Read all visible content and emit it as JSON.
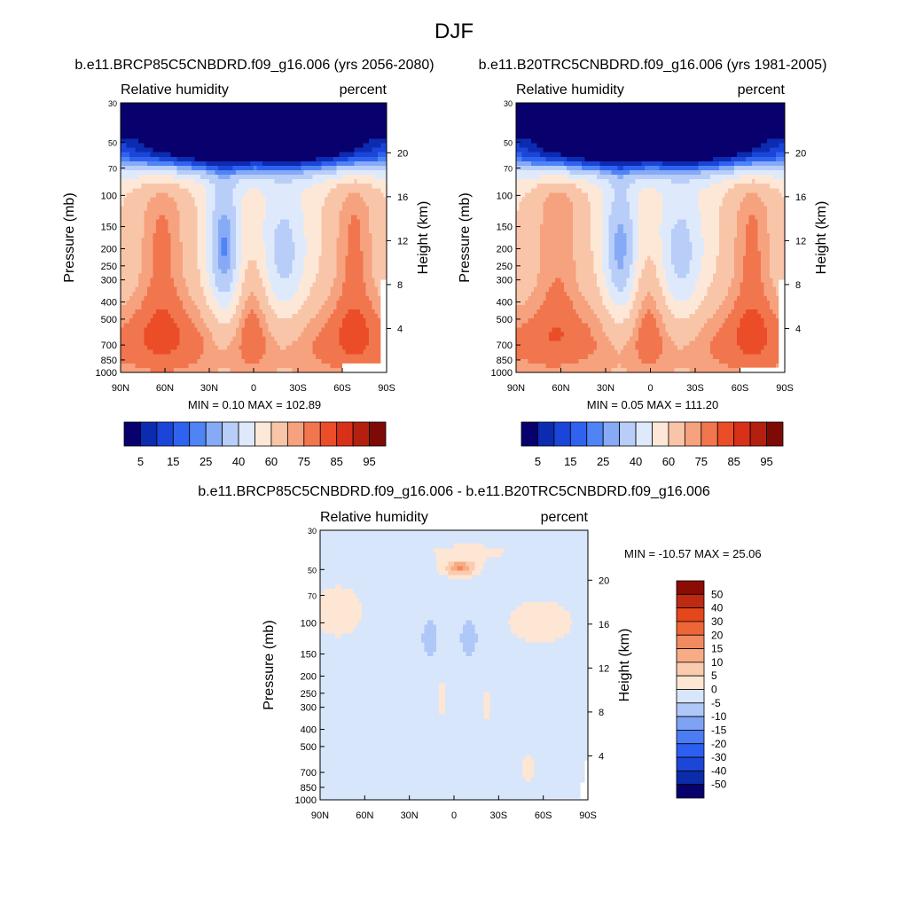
{
  "figure": {
    "title": "DJF"
  },
  "colors": {
    "abs_palette": [
      "#08006c",
      "#0c2bb0",
      "#1a45d8",
      "#2f62ef",
      "#4f84f5",
      "#86aaf5",
      "#b8cdf8",
      "#deeafc",
      "#fde8d8",
      "#f9c5a9",
      "#f6a27e",
      "#f1764e",
      "#eb4d28",
      "#d9301a",
      "#b3200f",
      "#7d0a05"
    ],
    "diff_palette": [
      "#08006c",
      "#0b2ba8",
      "#1c46d6",
      "#2c5fef",
      "#4b7cf3",
      "#7ea3f4",
      "#afc8f8",
      "#d7e6fb",
      "#fde6d3",
      "#fbcbae",
      "#f7ac86",
      "#f28a5f",
      "#ee6637",
      "#e4471c",
      "#bd2a12",
      "#8b0c05"
    ]
  },
  "chart_data": [
    {
      "type": "heatmap",
      "name": "panel-future",
      "title": "b.e11.BRCP85C5CNBDRD.f09_g16.006 (yrs 2056-2080)",
      "left_label": "Relative humidity",
      "right_label": "percent",
      "ylabel": "Pressure (mb)",
      "y2label": "Height (km)",
      "x_ticks": [
        "90N",
        "60N",
        "30N",
        "0",
        "30S",
        "60S",
        "90S"
      ],
      "x_values": [
        90,
        60,
        30,
        0,
        -30,
        -60,
        -90
      ],
      "y_ticks": [
        30,
        50,
        70,
        100,
        150,
        200,
        250,
        300,
        400,
        500,
        700,
        850,
        1000
      ],
      "y_ticks_right": [
        20,
        16,
        12,
        8,
        4
      ],
      "ylim": [
        1000,
        30
      ],
      "scale": "log",
      "stats": "MIN =   0.10  MAX = 102.89",
      "colorbar_labels": [
        "5",
        "15",
        "25",
        "40",
        "60",
        "75",
        "85",
        "95"
      ],
      "levels": [
        5,
        10,
        15,
        20,
        25,
        30,
        40,
        50,
        60,
        70,
        75,
        80,
        85,
        90,
        95
      ]
    },
    {
      "type": "heatmap",
      "name": "panel-present",
      "title": "b.e11.B20TRC5CNBDRD.f09_g16.006 (yrs 1981-2005)",
      "left_label": "Relative humidity",
      "right_label": "percent",
      "ylabel": "Pressure (mb)",
      "y2label": "Height (km)",
      "x_ticks": [
        "90N",
        "60N",
        "30N",
        "0",
        "30S",
        "60S",
        "90S"
      ],
      "x_values": [
        90,
        60,
        30,
        0,
        -30,
        -60,
        -90
      ],
      "y_ticks": [
        30,
        50,
        70,
        100,
        150,
        200,
        250,
        300,
        400,
        500,
        700,
        850,
        1000
      ],
      "y_ticks_right": [
        20,
        16,
        12,
        8,
        4
      ],
      "ylim": [
        1000,
        30
      ],
      "scale": "log",
      "stats": "MIN =   0.05  MAX = 111.20",
      "colorbar_labels": [
        "5",
        "15",
        "25",
        "40",
        "60",
        "75",
        "85",
        "95"
      ],
      "levels": [
        5,
        10,
        15,
        20,
        25,
        30,
        40,
        50,
        60,
        70,
        75,
        80,
        85,
        90,
        95
      ]
    },
    {
      "type": "heatmap",
      "name": "panel-difference",
      "title": "b.e11.BRCP85C5CNBDRD.f09_g16.006 - b.e11.B20TRC5CNBDRD.f09_g16.006",
      "left_label": "Relative humidity",
      "right_label": "percent",
      "ylabel": "Pressure (mb)",
      "y2label": "Height (km)",
      "x_ticks": [
        "90N",
        "60N",
        "30N",
        "0",
        "30S",
        "60S",
        "90S"
      ],
      "x_values": [
        90,
        60,
        30,
        0,
        -30,
        -60,
        -90
      ],
      "y_ticks": [
        30,
        50,
        70,
        100,
        150,
        200,
        250,
        300,
        400,
        500,
        700,
        850,
        1000
      ],
      "y_ticks_right": [
        20,
        16,
        12,
        8,
        4
      ],
      "ylim": [
        1000,
        30
      ],
      "scale": "log",
      "stats": "MIN = -10.57  MAX =  25.06",
      "colorbar_labels": [
        "50",
        "40",
        "30",
        "20",
        "15",
        "10",
        "5",
        "0",
        "-5",
        "-10",
        "-15",
        "-20",
        "-30",
        "-40",
        "-50"
      ],
      "levels": [
        -50,
        -40,
        -30,
        -20,
        -15,
        -10,
        -5,
        0,
        5,
        10,
        15,
        20,
        30,
        40,
        50
      ]
    }
  ]
}
